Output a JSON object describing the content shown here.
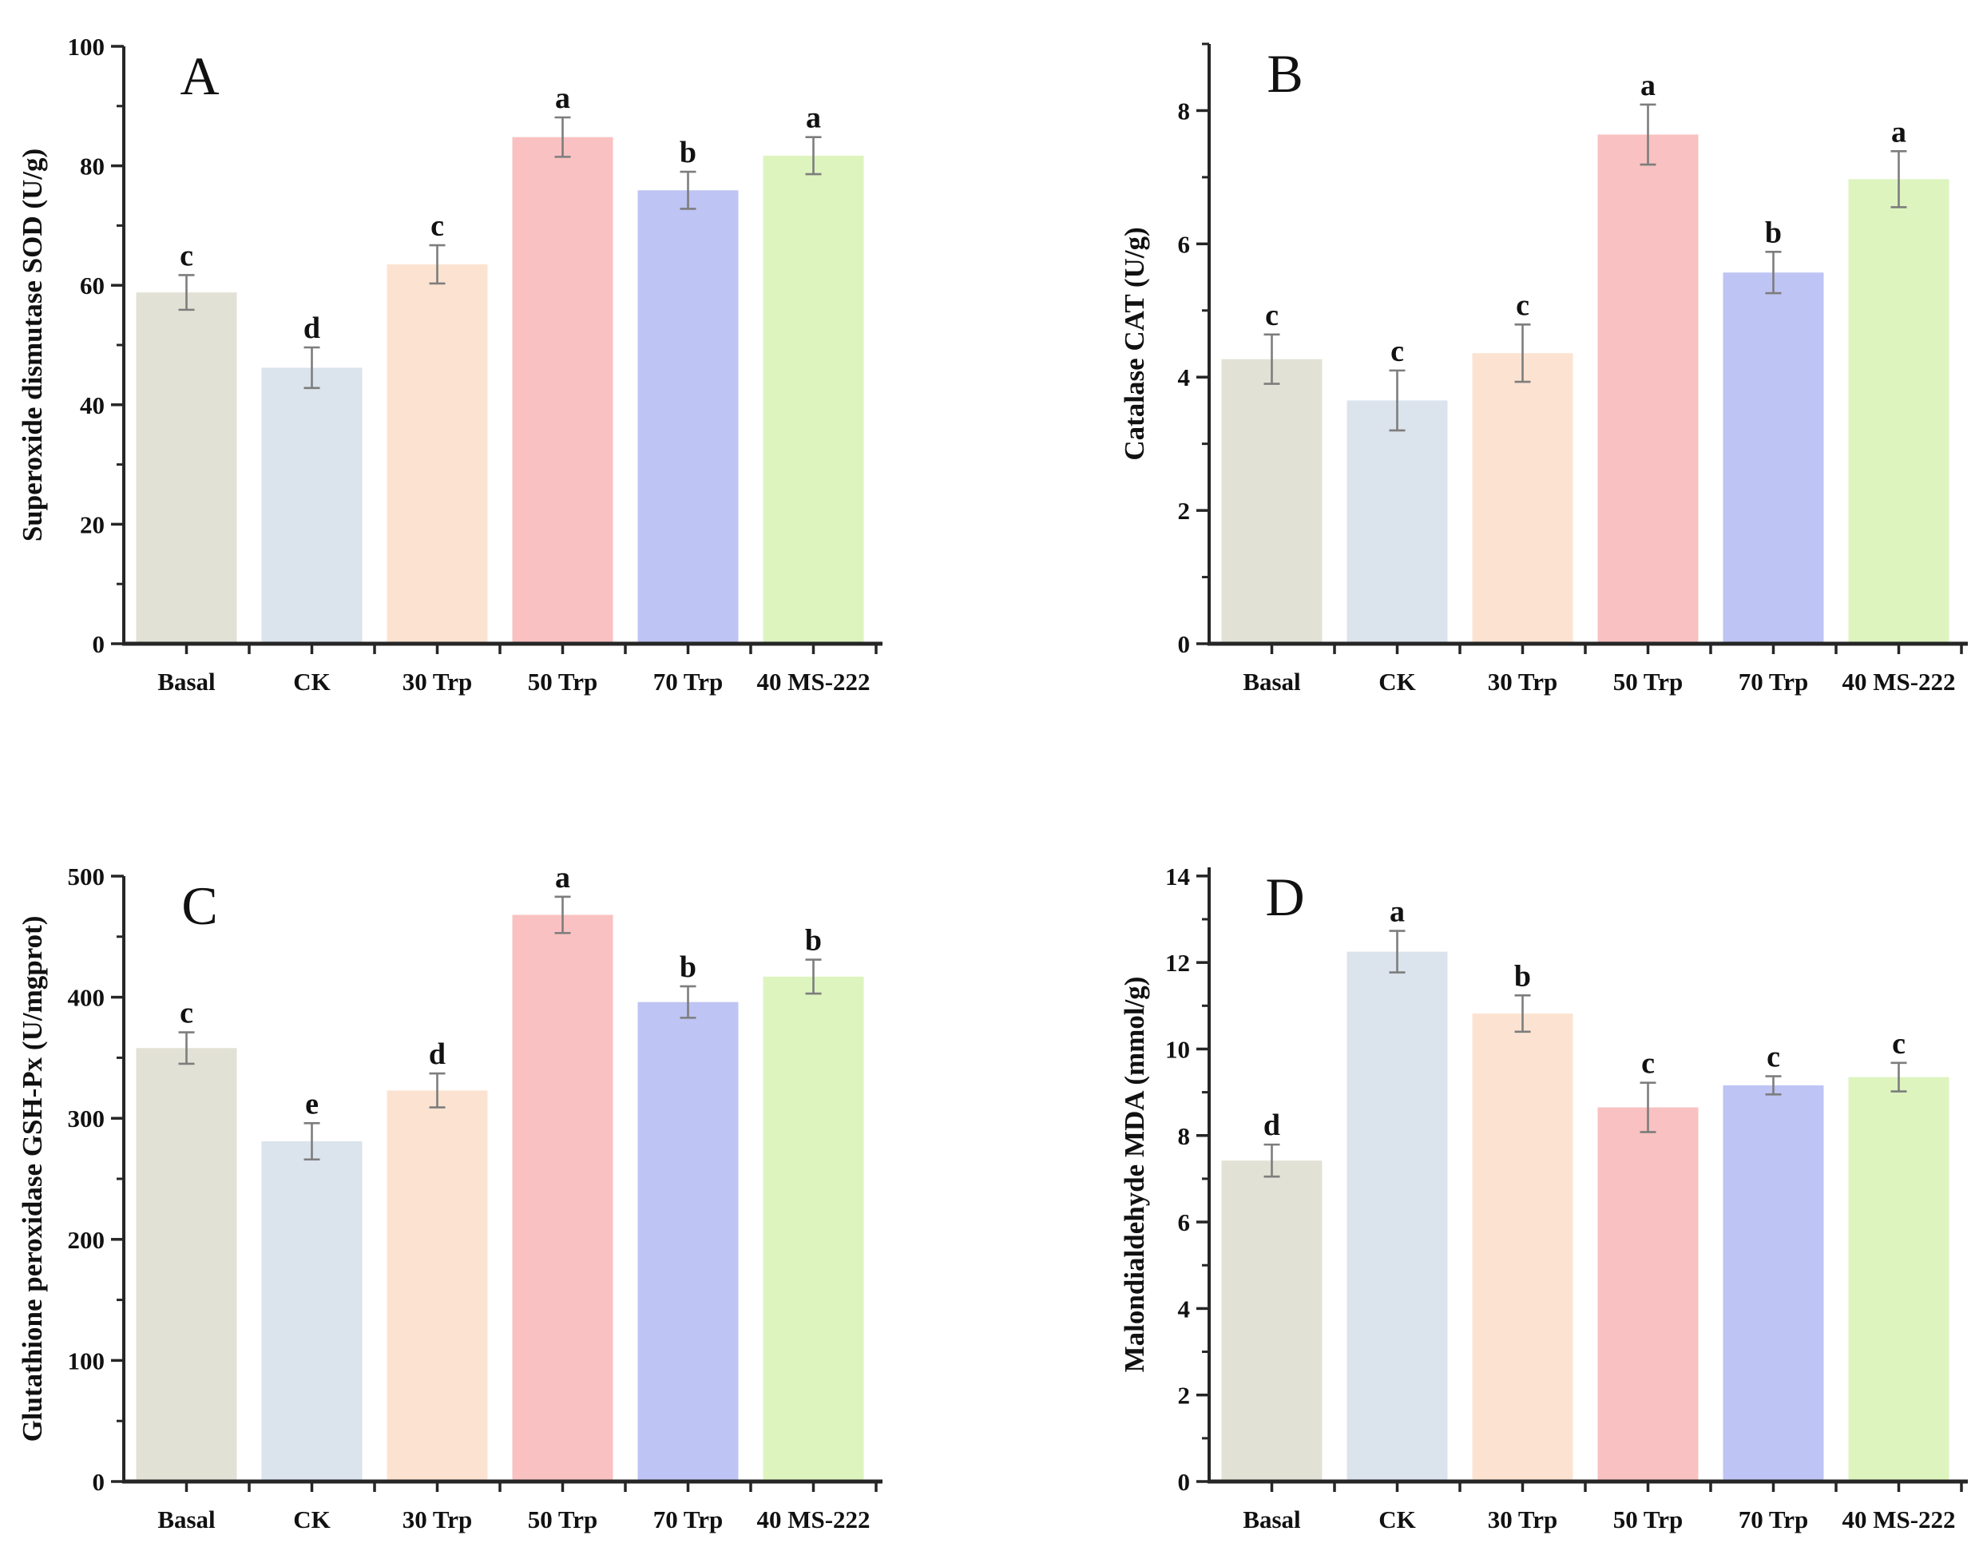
{
  "colors": {
    "bars": [
      "#e2e1d5",
      "#dbe3ed",
      "#fce3d1",
      "#f9c1c1",
      "#bec4f4",
      "#ddf4bf"
    ],
    "axis": "#262626",
    "error_bars": "#7d7d7d",
    "text": "#111111"
  },
  "chart_data": [
    {
      "type": "bar",
      "panel_label": "A",
      "ylabel": "Superoxide dismutase SOD (U/g)",
      "xlabel": "",
      "ylim": [
        0,
        100
      ],
      "ytick_major": 20,
      "ytick_minor": 10,
      "grid": false,
      "legend_position": "none",
      "categories": [
        "Basal",
        "CK",
        "30 Trp",
        "50 Trp",
        "70 Trp",
        "40 MS-222"
      ],
      "values": [
        58.8,
        46.2,
        63.5,
        84.8,
        75.9,
        81.7
      ],
      "errors": [
        2.9,
        3.4,
        3.2,
        3.3,
        3.1,
        3.1
      ],
      "sig_letters": [
        "c",
        "d",
        "c",
        "a",
        "b",
        "a"
      ]
    },
    {
      "type": "bar",
      "panel_label": "B",
      "ylabel": "Catalase CAT (U/g)",
      "xlabel": "",
      "ylim": [
        0,
        9
      ],
      "ytick_major": 2,
      "ytick_minor": 1,
      "grid": false,
      "legend_position": "none",
      "categories": [
        "Basal",
        "CK",
        "30 Trp",
        "50 Trp",
        "70 Trp",
        "40 MS-222"
      ],
      "values": [
        4.27,
        3.65,
        4.36,
        7.64,
        5.57,
        6.97
      ],
      "errors": [
        0.37,
        0.45,
        0.43,
        0.45,
        0.31,
        0.42
      ],
      "sig_letters": [
        "c",
        "c",
        "c",
        "a",
        "b",
        "a"
      ]
    },
    {
      "type": "bar",
      "panel_label": "C",
      "ylabel": "Glutathione peroxidase GSH-Px (U/mgprot)",
      "xlabel": "",
      "ylim": [
        0,
        500
      ],
      "ytick_major": 100,
      "ytick_minor": 50,
      "grid": false,
      "legend_position": "none",
      "categories": [
        "Basal",
        "CK",
        "30 Trp",
        "50 Trp",
        "70 Trp",
        "40 MS-222"
      ],
      "values": [
        358,
        281,
        323,
        468,
        396,
        417
      ],
      "errors": [
        13,
        15,
        14,
        15,
        13,
        14
      ],
      "sig_letters": [
        "c",
        "e",
        "d",
        "a",
        "b",
        "b"
      ]
    },
    {
      "type": "bar",
      "panel_label": "D",
      "ylabel": "Malondialdehyde MDA (mmol/g)",
      "xlabel": "",
      "ylim": [
        0,
        14.2
      ],
      "ytick_major": 2,
      "ytick_minor": 1,
      "grid": false,
      "legend_position": "none",
      "categories": [
        "Basal",
        "CK",
        "30 Trp",
        "50 Trp",
        "70 Trp",
        "40 MS-222"
      ],
      "values": [
        7.42,
        12.25,
        10.82,
        8.65,
        9.16,
        9.35
      ],
      "errors": [
        0.37,
        0.48,
        0.42,
        0.57,
        0.21,
        0.33
      ],
      "sig_letters": [
        "d",
        "a",
        "b",
        "c",
        "c",
        "c"
      ]
    }
  ]
}
